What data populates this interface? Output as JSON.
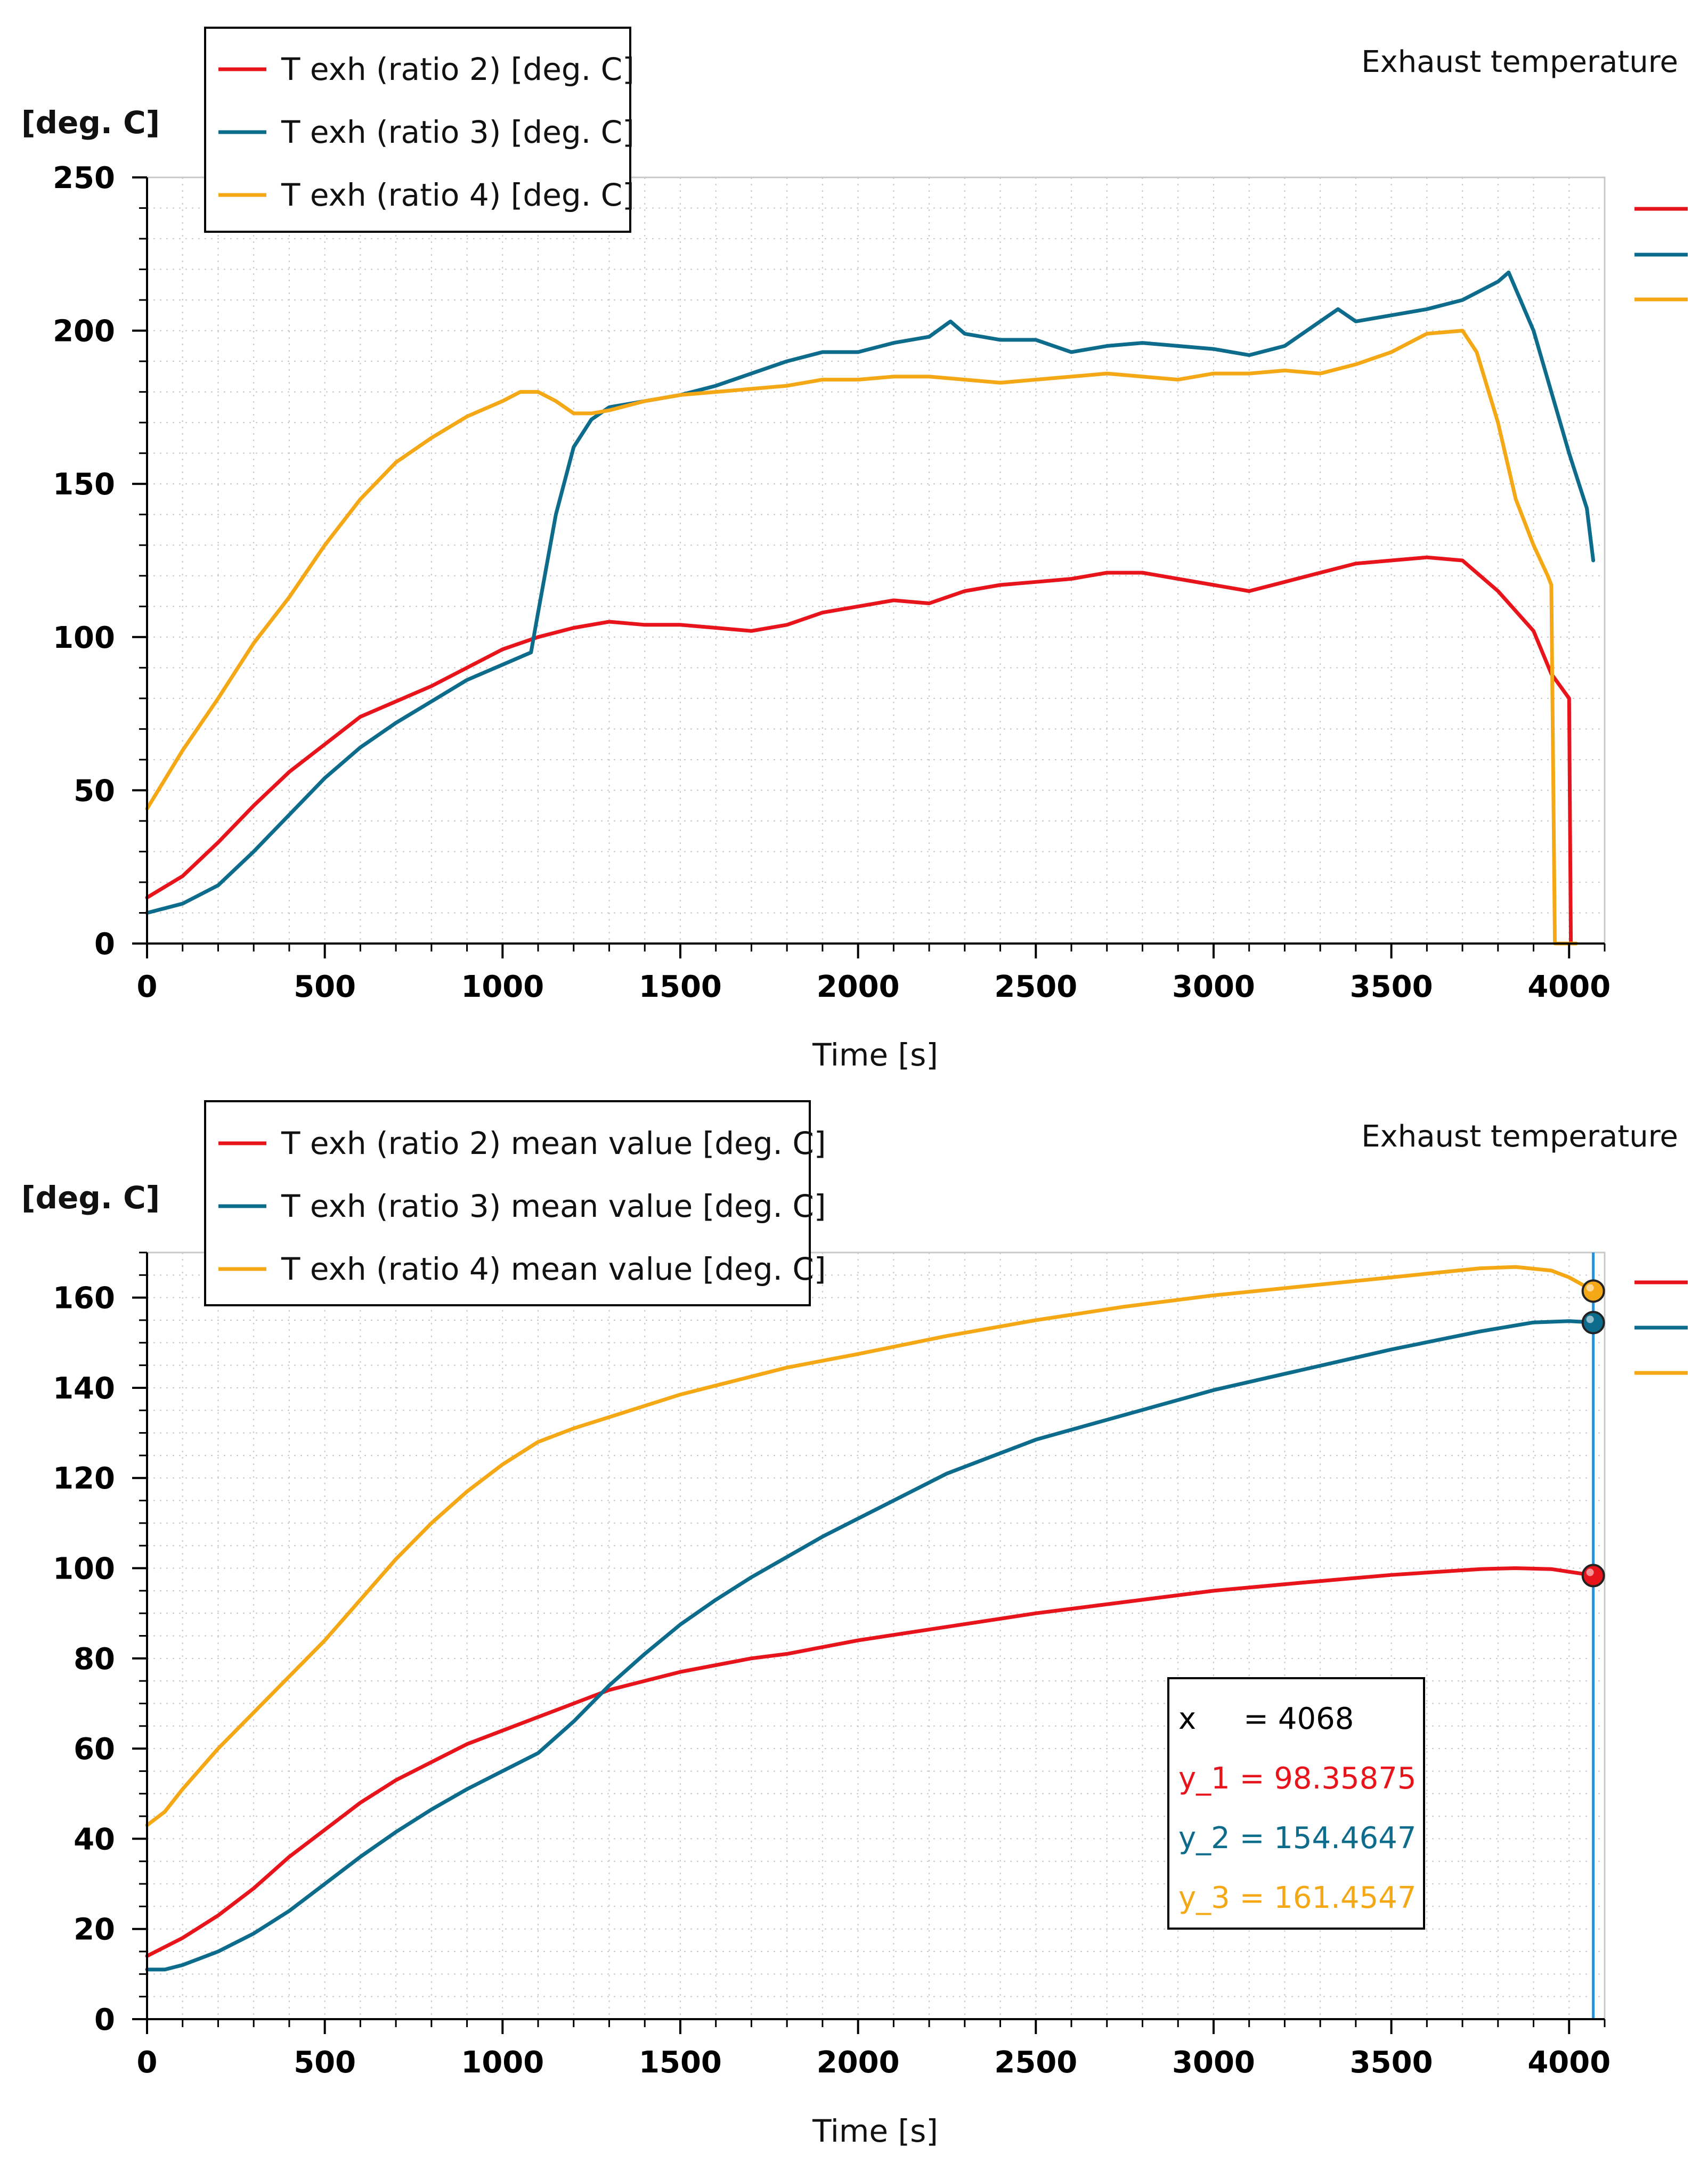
{
  "colors": {
    "ratio2": "#e8141c",
    "ratio3": "#0d6b8c",
    "ratio4": "#f5a816",
    "cursor": "#2b8fd6",
    "grid": "#c8c8c8"
  },
  "chart_data": [
    {
      "type": "line",
      "title": "Exhaust temperature",
      "xlabel": "Time [s]",
      "ylabel": "[deg. C]",
      "xlim": [
        0,
        4100
      ],
      "ylim": [
        0,
        250
      ],
      "xticks": [
        "0",
        "500",
        "1000",
        "1500",
        "2000",
        "2500",
        "3000",
        "3500",
        "4000"
      ],
      "yticks": [
        "0",
        "50",
        "100",
        "150",
        "200",
        "250"
      ],
      "legend": [
        "T exh (ratio 2) [deg. C]",
        "T exh (ratio 3) [deg. C]",
        "T exh (ratio 4) [deg. C]"
      ],
      "series": [
        {
          "name": "T exh (ratio 2) [deg. C]",
          "color": "ratio2",
          "x": [
            0,
            100,
            200,
            300,
            400,
            500,
            600,
            700,
            800,
            900,
            1000,
            1100,
            1200,
            1300,
            1400,
            1500,
            1600,
            1700,
            1800,
            1900,
            2000,
            2100,
            2200,
            2300,
            2400,
            2500,
            2600,
            2700,
            2800,
            2900,
            3000,
            3100,
            3200,
            3300,
            3400,
            3500,
            3600,
            3700,
            3800,
            3900,
            3950,
            4000,
            4005
          ],
          "y": [
            15,
            22,
            33,
            45,
            56,
            65,
            74,
            79,
            84,
            90,
            96,
            100,
            103,
            105,
            104,
            104,
            103,
            102,
            104,
            108,
            110,
            112,
            111,
            115,
            117,
            118,
            119,
            121,
            121,
            119,
            117,
            115,
            118,
            121,
            124,
            125,
            126,
            125,
            115,
            102,
            88,
            80,
            0
          ]
        },
        {
          "name": "T exh (ratio 3) [deg. C]",
          "color": "ratio3",
          "x": [
            0,
            100,
            200,
            300,
            400,
            500,
            600,
            700,
            800,
            900,
            1000,
            1080,
            1100,
            1150,
            1200,
            1250,
            1300,
            1400,
            1500,
            1600,
            1700,
            1800,
            1900,
            2000,
            2100,
            2200,
            2260,
            2300,
            2400,
            2500,
            2600,
            2700,
            2800,
            2900,
            3000,
            3100,
            3200,
            3300,
            3350,
            3400,
            3500,
            3600,
            3700,
            3800,
            3830,
            3900,
            3950,
            4000,
            4050,
            4068
          ],
          "y": [
            10,
            13,
            19,
            30,
            42,
            54,
            64,
            72,
            79,
            86,
            91,
            95,
            108,
            140,
            162,
            171,
            175,
            177,
            179,
            182,
            186,
            190,
            193,
            193,
            196,
            198,
            203,
            199,
            197,
            197,
            193,
            195,
            196,
            195,
            194,
            192,
            195,
            203,
            207,
            203,
            205,
            207,
            210,
            216,
            219,
            200,
            180,
            160,
            142,
            125
          ]
        },
        {
          "name": "T exh (ratio 4) [deg. C]",
          "color": "ratio4",
          "x": [
            0,
            100,
            200,
            300,
            400,
            500,
            600,
            700,
            800,
            900,
            1000,
            1050,
            1100,
            1150,
            1200,
            1250,
            1300,
            1400,
            1500,
            1600,
            1700,
            1800,
            1900,
            2000,
            2100,
            2200,
            2300,
            2400,
            2500,
            2600,
            2700,
            2800,
            2900,
            3000,
            3100,
            3200,
            3300,
            3400,
            3500,
            3600,
            3700,
            3740,
            3800,
            3850,
            3900,
            3940,
            3950,
            3960,
            4020
          ],
          "y": [
            44,
            63,
            80,
            98,
            113,
            130,
            145,
            157,
            165,
            172,
            177,
            180,
            180,
            177,
            173,
            173,
            174,
            177,
            179,
            180,
            181,
            182,
            184,
            184,
            185,
            185,
            184,
            183,
            184,
            185,
            186,
            185,
            184,
            186,
            186,
            187,
            186,
            189,
            193,
            199,
            200,
            193,
            170,
            145,
            130,
            120,
            117,
            0,
            0
          ]
        }
      ]
    },
    {
      "type": "line",
      "title": "Exhaust temperature",
      "xlabel": "Time [s]",
      "ylabel": "[deg. C]",
      "xlim": [
        0,
        4100
      ],
      "ylim": [
        0,
        170
      ],
      "xticks": [
        "0",
        "500",
        "1000",
        "1500",
        "2000",
        "2500",
        "3000",
        "3500",
        "4000"
      ],
      "yticks": [
        "0",
        "20",
        "40",
        "60",
        "80",
        "100",
        "120",
        "140",
        "160"
      ],
      "legend": [
        "T exh (ratio 2) mean value [deg. C]",
        "T exh (ratio 3) mean value [deg. C]",
        "T exh (ratio 4) mean value [deg. C]"
      ],
      "series": [
        {
          "name": "T exh (ratio 2) mean value [deg. C]",
          "color": "ratio2",
          "x": [
            0,
            100,
            200,
            300,
            400,
            500,
            600,
            700,
            800,
            900,
            1000,
            1100,
            1200,
            1300,
            1400,
            1500,
            1600,
            1700,
            1800,
            1900,
            2000,
            2250,
            2500,
            2750,
            3000,
            3250,
            3500,
            3750,
            3850,
            3950,
            4068
          ],
          "y": [
            14,
            18,
            23,
            29,
            36,
            42,
            48,
            53,
            57,
            61,
            64,
            67,
            70,
            73,
            75,
            77,
            78.5,
            80,
            81,
            82.5,
            84,
            87,
            90,
            92.5,
            95,
            96.8,
            98.5,
            99.8,
            100,
            99.8,
            98.4
          ]
        },
        {
          "name": "T exh (ratio 3) mean value [deg. C]",
          "color": "ratio3",
          "x": [
            0,
            50,
            100,
            200,
            300,
            400,
            500,
            600,
            700,
            800,
            900,
            1000,
            1100,
            1200,
            1300,
            1400,
            1500,
            1600,
            1700,
            1800,
            1900,
            2000,
            2250,
            2500,
            2750,
            3000,
            3250,
            3500,
            3750,
            3900,
            4000,
            4068
          ],
          "y": [
            11,
            11,
            12,
            15,
            19,
            24,
            30,
            36,
            41.5,
            46.5,
            51,
            55,
            59,
            66,
            74,
            81,
            87.5,
            93,
            98,
            102.5,
            107,
            111,
            121,
            128.5,
            134,
            139.5,
            144,
            148.5,
            152.5,
            154.5,
            154.8,
            154.5
          ]
        },
        {
          "name": "T exh (ratio 4) mean value [deg. C]",
          "color": "ratio4",
          "x": [
            0,
            50,
            100,
            200,
            300,
            400,
            500,
            600,
            700,
            800,
            900,
            1000,
            1100,
            1200,
            1300,
            1400,
            1500,
            1600,
            1700,
            1800,
            1900,
            2000,
            2250,
            2500,
            2750,
            3000,
            3250,
            3500,
            3750,
            3850,
            3950,
            4000,
            4068
          ],
          "y": [
            43,
            46,
            51,
            60,
            68,
            76,
            84,
            93,
            102,
            110,
            117,
            123,
            128,
            131,
            133.5,
            136,
            138.5,
            140.5,
            142.5,
            144.5,
            146,
            147.5,
            151.5,
            155,
            158,
            160.5,
            162.5,
            164.5,
            166.5,
            166.8,
            166,
            164.5,
            161.5
          ]
        }
      ],
      "cursor": {
        "x": 4068,
        "y1": 98.35875,
        "y2": 154.4647,
        "y3": 161.4547
      },
      "readout": [
        "x     = 4068",
        "y_1 = 98.35875",
        "y_2 = 154.4647",
        "y_3 = 161.4547"
      ]
    }
  ]
}
